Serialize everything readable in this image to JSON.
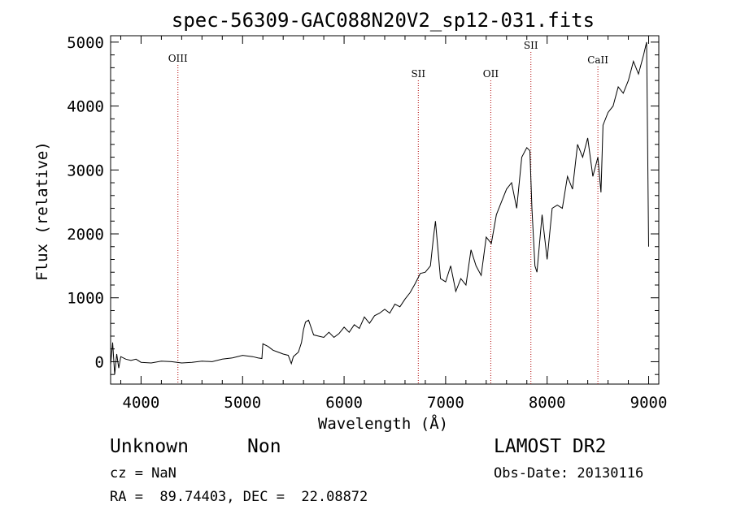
{
  "chart_data": {
    "type": "line",
    "title": "spec-56309-GAC088N20V2_sp12-031.fits",
    "xlabel": "Wavelength (Å)",
    "ylabel": "Flux (relative)",
    "xlim": [
      3700,
      9100
    ],
    "ylim": [
      -350,
      5100
    ],
    "xticks": [
      4000,
      5000,
      6000,
      7000,
      8000,
      9000
    ],
    "yticks": [
      0,
      1000,
      2000,
      3000,
      4000,
      5000
    ],
    "lines": [
      {
        "name": "OIII",
        "x": 4363
      },
      {
        "name": "SII",
        "x": 6731
      },
      {
        "name": "OII",
        "x": 7445
      },
      {
        "name": "SII",
        "x": 7840
      },
      {
        "name": "CaII",
        "x": 8500
      }
    ],
    "series": [
      {
        "x": [
          3700,
          3720,
          3740,
          3760,
          3780,
          3800,
          3850,
          3900,
          3950,
          4000,
          4100,
          4200,
          4300,
          4400,
          4500,
          4600,
          4700,
          4800,
          4900,
          5000,
          5100,
          5150,
          5190,
          5200,
          5250,
          5300,
          5350,
          5400,
          5450,
          5480,
          5500,
          5550,
          5580,
          5600,
          5620,
          5650,
          5700,
          5750,
          5800,
          5850,
          5900,
          5950,
          6000,
          6050,
          6100,
          6150,
          6200,
          6250,
          6300,
          6350,
          6400,
          6450,
          6500,
          6550,
          6600,
          6650,
          6700,
          6750,
          6800,
          6850,
          6880,
          6900,
          6950,
          7000,
          7050,
          7100,
          7150,
          7200,
          7250,
          7300,
          7350,
          7400,
          7450,
          7500,
          7550,
          7600,
          7650,
          7700,
          7750,
          7800,
          7830,
          7850,
          7880,
          7900,
          7950,
          8000,
          8050,
          8100,
          8150,
          8200,
          8250,
          8300,
          8350,
          8400,
          8450,
          8500,
          8530,
          8550,
          8600,
          8650,
          8700,
          8750,
          8800,
          8850,
          8900,
          8950,
          8980,
          9000
        ],
        "y": [
          -50,
          300,
          -200,
          120,
          -100,
          80,
          40,
          20,
          40,
          -10,
          -20,
          10,
          0,
          -20,
          -10,
          10,
          0,
          40,
          60,
          100,
          80,
          60,
          50,
          280,
          240,
          180,
          150,
          120,
          100,
          -30,
          80,
          150,
          300,
          500,
          620,
          650,
          420,
          400,
          380,
          460,
          380,
          440,
          540,
          460,
          580,
          520,
          700,
          600,
          720,
          760,
          820,
          760,
          900,
          860,
          980,
          1080,
          1220,
          1380,
          1400,
          1500,
          1940,
          2200,
          1300,
          1250,
          1500,
          1100,
          1300,
          1200,
          1750,
          1500,
          1350,
          1950,
          1850,
          2300,
          2500,
          2700,
          2800,
          2400,
          3200,
          3350,
          3300,
          2400,
          1500,
          1400,
          2300,
          1600,
          2400,
          2450,
          2400,
          2900,
          2700,
          3400,
          3200,
          3500,
          2900,
          3200,
          2650,
          3700,
          3900,
          4000,
          4300,
          4200,
          4400,
          4700,
          4500,
          4800,
          5000,
          1800
        ]
      }
    ],
    "grid": false
  },
  "info": {
    "class_label": "Unknown",
    "subclass_label": "Non",
    "survey": "LAMOST DR2",
    "cz": "cz = NaN",
    "obs_date": "Obs-Date: 20130116",
    "coords": "RA =  89.74403, DEC =  22.08872"
  }
}
